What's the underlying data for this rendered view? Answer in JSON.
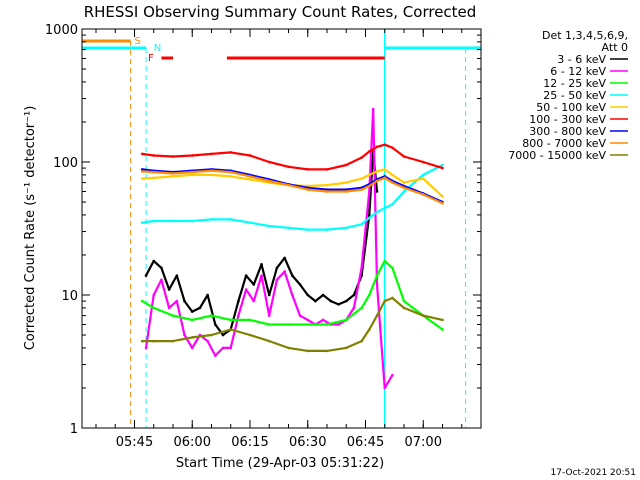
{
  "chart_data": {
    "type": "line",
    "title": "RHESSI Observing Summary Count Rates, Corrected",
    "xlabel": "Start Time (29-Apr-03 05:31:22)",
    "ylabel": "Corrected Count Rate (s⁻¹ detector⁻¹)",
    "yscale": "log",
    "ylim": [
      1,
      1000
    ],
    "xlim": [
      "05:31:22",
      "07:15:00"
    ],
    "x_ticks": [
      "05:45",
      "06:00",
      "06:15",
      "06:30",
      "06:45",
      "07:00"
    ],
    "y_ticks": [
      "1",
      "10",
      "100",
      "1000"
    ],
    "timestamp": "17-Oct-2021 20:51",
    "legend": {
      "position": "right",
      "header": [
        "Det 1,3,4,5,6,9,",
        "Att 0"
      ],
      "entries": [
        {
          "label": "3 - 6 keV",
          "color": "#000000"
        },
        {
          "label": "6 - 12 keV",
          "color": "#ff00ff"
        },
        {
          "label": "12 - 25 keV",
          "color": "#00ff00"
        },
        {
          "label": "25 - 50 keV",
          "color": "#00ffff"
        },
        {
          "label": "50 - 100 keV",
          "color": "#ffcc00"
        },
        {
          "label": "100 - 300 keV",
          "color": "#ff0000"
        },
        {
          "label": "300 - 800 keV",
          "color": "#0000ff"
        },
        {
          "label": "800 - 7000 keV",
          "color": "#ff8c00"
        },
        {
          "label": "7000 - 15000 keV",
          "color": "#808000"
        }
      ]
    },
    "markers": [
      {
        "label": "S",
        "color": "#ff8c00"
      },
      {
        "label": "N",
        "color": "#00ffff"
      },
      {
        "label": "F",
        "color": "#ff0000"
      }
    ],
    "series": [
      {
        "name": "3 - 6 keV",
        "color": "#000000",
        "x": [
          "05:48",
          "05:50",
          "05:52",
          "05:54",
          "05:56",
          "05:58",
          "06:00",
          "06:02",
          "06:04",
          "06:06",
          "06:08",
          "06:10",
          "06:12",
          "06:14",
          "06:16",
          "06:18",
          "06:20",
          "06:22",
          "06:24",
          "06:26",
          "06:28",
          "06:30",
          "06:32",
          "06:34",
          "06:36",
          "06:38",
          "06:40",
          "06:42",
          "06:44",
          "06:46",
          "06:47",
          "06:48"
        ],
        "y": [
          14,
          18,
          16,
          11,
          14,
          9,
          7.5,
          8,
          10,
          6,
          5,
          5.5,
          9,
          14,
          12,
          17,
          10,
          16,
          19,
          14,
          12,
          10,
          9,
          10,
          9,
          8.5,
          9,
          10,
          14,
          40,
          120,
          60
        ]
      },
      {
        "name": "6 - 12 keV",
        "color": "#ff00ff",
        "x": [
          "05:48",
          "05:50",
          "05:52",
          "05:54",
          "05:56",
          "05:58",
          "06:00",
          "06:02",
          "06:04",
          "06:06",
          "06:08",
          "06:10",
          "06:12",
          "06:14",
          "06:16",
          "06:18",
          "06:20",
          "06:22",
          "06:24",
          "06:26",
          "06:28",
          "06:30",
          "06:32",
          "06:34",
          "06:36",
          "06:38",
          "06:40",
          "06:42",
          "06:44",
          "06:46",
          "06:47",
          "06:48",
          "06:50",
          "06:52"
        ],
        "y": [
          4,
          10,
          13,
          8,
          9,
          5,
          4,
          5,
          4.5,
          3.5,
          4,
          4,
          7,
          11,
          9,
          14,
          7,
          13,
          15,
          10,
          7,
          6.5,
          6,
          6.5,
          6,
          6,
          6.5,
          8,
          16,
          60,
          250,
          12,
          2,
          2.5
        ]
      },
      {
        "name": "12 - 25 keV",
        "color": "#00ff00",
        "x": [
          "05:47",
          "05:50",
          "05:55",
          "06:00",
          "06:05",
          "06:10",
          "06:15",
          "06:20",
          "06:25",
          "06:30",
          "06:35",
          "06:40",
          "06:44",
          "06:46",
          "06:48",
          "06:50",
          "06:52",
          "06:55",
          "07:00",
          "07:05"
        ],
        "y": [
          9,
          8,
          7,
          6.5,
          7,
          6.5,
          6.5,
          6,
          6,
          6,
          6,
          6.5,
          8,
          10,
          14,
          18,
          16,
          9,
          7,
          5.5
        ]
      },
      {
        "name": "25 - 50 keV",
        "color": "#00ffff",
        "x": [
          "05:47",
          "05:50",
          "05:55",
          "06:00",
          "06:05",
          "06:10",
          "06:15",
          "06:20",
          "06:25",
          "06:30",
          "06:35",
          "06:40",
          "06:44",
          "06:46",
          "06:48",
          "06:50",
          "06:52",
          "06:55",
          "07:00",
          "07:05"
        ],
        "y": [
          35,
          36,
          36,
          36,
          37,
          37,
          35,
          33,
          32,
          31,
          31,
          32,
          34,
          38,
          42,
          45,
          48,
          60,
          80,
          95
        ]
      },
      {
        "name": "50 - 100 keV",
        "color": "#ffcc00",
        "x": [
          "05:47",
          "05:50",
          "05:55",
          "06:00",
          "06:05",
          "06:10",
          "06:15",
          "06:20",
          "06:25",
          "06:30",
          "06:35",
          "06:40",
          "06:44",
          "06:46",
          "06:48",
          "06:50",
          "06:52",
          "06:55",
          "07:00",
          "07:05"
        ],
        "y": [
          75,
          76,
          78,
          80,
          80,
          78,
          74,
          70,
          67,
          66,
          67,
          70,
          75,
          80,
          85,
          88,
          80,
          70,
          75,
          55
        ]
      },
      {
        "name": "100 - 300 keV",
        "color": "#ff0000",
        "x": [
          "05:47",
          "05:50",
          "05:55",
          "06:00",
          "06:05",
          "06:10",
          "06:15",
          "06:20",
          "06:25",
          "06:30",
          "06:35",
          "06:40",
          "06:44",
          "06:46",
          "06:48",
          "06:50",
          "06:52",
          "06:55",
          "07:00",
          "07:05"
        ],
        "y": [
          115,
          112,
          110,
          112,
          115,
          118,
          112,
          100,
          92,
          88,
          88,
          95,
          108,
          120,
          130,
          135,
          128,
          110,
          100,
          90
        ]
      },
      {
        "name": "300 - 800 keV",
        "color": "#0000ff",
        "x": [
          "05:47",
          "05:50",
          "05:55",
          "06:00",
          "06:05",
          "06:10",
          "06:15",
          "06:20",
          "06:25",
          "06:30",
          "06:35",
          "06:40",
          "06:44",
          "06:46",
          "06:48",
          "06:50",
          "06:52",
          "06:55",
          "07:00",
          "07:05"
        ],
        "y": [
          88,
          86,
          84,
          86,
          88,
          86,
          80,
          74,
          68,
          64,
          62,
          62,
          64,
          68,
          74,
          78,
          72,
          66,
          58,
          50
        ]
      },
      {
        "name": "800 - 7000 keV",
        "color": "#ff8c00",
        "x": [
          "05:47",
          "05:50",
          "05:55",
          "06:00",
          "06:05",
          "06:10",
          "06:15",
          "06:20",
          "06:25",
          "06:30",
          "06:35",
          "06:40",
          "06:44",
          "06:46",
          "06:48",
          "06:50",
          "06:52",
          "06:55",
          "07:00",
          "07:05"
        ],
        "y": [
          85,
          84,
          82,
          84,
          86,
          84,
          78,
          72,
          67,
          62,
          60,
          60,
          62,
          66,
          72,
          76,
          70,
          64,
          57,
          49
        ]
      },
      {
        "name": "7000 - 15000 keV",
        "color": "#808000",
        "x": [
          "05:47",
          "05:50",
          "05:55",
          "06:00",
          "06:05",
          "06:10",
          "06:15",
          "06:20",
          "06:25",
          "06:30",
          "06:35",
          "06:40",
          "06:44",
          "06:46",
          "06:48",
          "06:50",
          "06:52",
          "06:55",
          "07:00",
          "07:05"
        ],
        "y": [
          4.5,
          4.5,
          4.5,
          4.8,
          5,
          5.5,
          5,
          4.5,
          4,
          3.8,
          3.8,
          4,
          4.5,
          5.5,
          7,
          9,
          9.5,
          8,
          7,
          6.5
        ]
      }
    ]
  }
}
